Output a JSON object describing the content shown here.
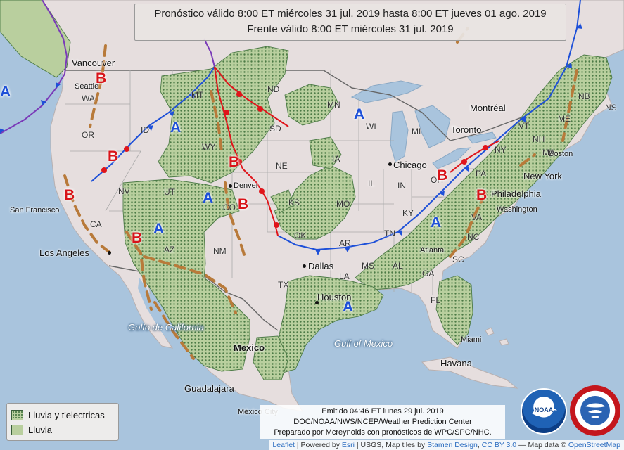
{
  "header": {
    "line1": "Pronóstico válido 8:00 ET miércoles 31 jul. 2019 hasta 8:00 ET jueves 01 ago. 2019",
    "line2": "Frente válido 8:00 ET miércoles 31 jul. 2019"
  },
  "legend": {
    "storms": "Lluvia y t'electricas",
    "rain": "Lluvia"
  },
  "credit": {
    "line1": "Emitido 04:46 ET lunes 29 jul. 2019",
    "line2": "DOC/NOAA/NWS/NCEP/Weather Prediction Center",
    "line3": "Preparado por Mcreynolds con pronósticos de WPC/SPC/NHC."
  },
  "attribution": {
    "leaflet": "Leaflet",
    "powered": "| Powered by",
    "esri": "Esri",
    "usgs": "| USGS, Map tiles by",
    "stamen": "Stamen Design",
    "cc": "CC BY 3.0",
    "mapdata": "— Map data ©",
    "osm": "OpenStreetMap"
  },
  "cities": {
    "vancouver": "Vancouver",
    "seattle": "Seattle",
    "san_francisco": "San Francisco",
    "los_angeles": "Los Angeles",
    "denver": "Denver",
    "dallas": "Dallas",
    "houston": "Houston",
    "chicago": "Chicago",
    "toronto": "Toronto",
    "montreal": "Montréal",
    "new_york": "New York",
    "philadelphia": "Philadelphia",
    "washington": "Washington",
    "atlanta": "Atlanta",
    "miami": "Miami",
    "havana": "Havana",
    "mexico": "Mexico",
    "guadalajara": "Guadalajara",
    "mexico_city": "México City",
    "boston": "Boston"
  },
  "water": {
    "gulf_mexico": "Gulf of Mexico",
    "gulf_california": "Golfo de California"
  },
  "states": [
    "WA",
    "OR",
    "CA",
    "NV",
    "ID",
    "MT",
    "WY",
    "UT",
    "AZ",
    "CO",
    "NM",
    "ND",
    "SD",
    "NE",
    "KS",
    "OK",
    "TX",
    "MN",
    "IA",
    "MO",
    "AR",
    "LA",
    "WI",
    "IL",
    "MS",
    "AL",
    "GA",
    "FL",
    "TN",
    "KY",
    "IN",
    "OH",
    "PA",
    "NY",
    "VA",
    "NC",
    "SC",
    "ME",
    "NH",
    "NB",
    "NS",
    "VT",
    "MA",
    "MI"
  ],
  "pressure": {
    "high_label": "A",
    "low_label": "B",
    "highs": [
      {
        "name": "pacific"
      },
      {
        "name": "idaho"
      },
      {
        "name": "utah"
      },
      {
        "name": "arizona"
      },
      {
        "name": "wisconsin"
      },
      {
        "name": "mid-atlantic"
      },
      {
        "name": "gulf"
      }
    ],
    "lows": [
      {
        "name": "washington"
      },
      {
        "name": "oregon"
      },
      {
        "name": "california"
      },
      {
        "name": "arizona"
      },
      {
        "name": "colorado-north"
      },
      {
        "name": "colorado-south"
      },
      {
        "name": "ohio"
      },
      {
        "name": "pennsylvania"
      }
    ]
  },
  "colors": {
    "ocean": "#a9c4dd",
    "land": "#e6dede",
    "precip": "#b9cf9e",
    "cold_front": "#1e50d8",
    "warm_front": "#e0141a",
    "trough": "#b87a3a",
    "occluded": "#7a3ab8"
  }
}
